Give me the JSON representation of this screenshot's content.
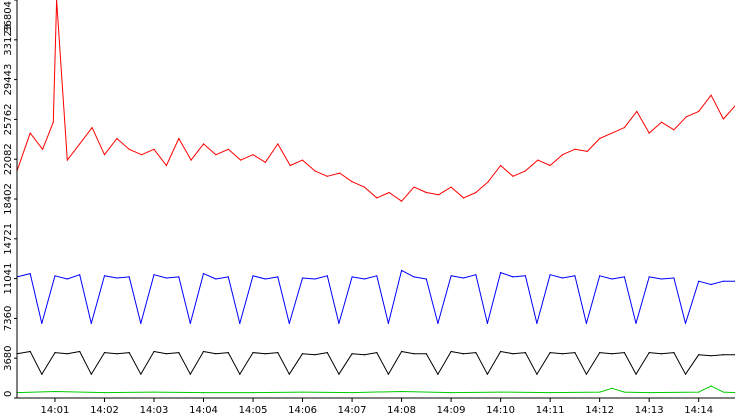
{
  "chart_data": {
    "type": "line",
    "title": "",
    "xlabel": "",
    "ylabel": "",
    "grid": false,
    "legend": "none",
    "background": "#ffffff",
    "axis_color": "#000000",
    "ylim": [
      0,
      36804
    ],
    "yticks": [
      {
        "value": 0,
        "label": "0"
      },
      {
        "value": 3680,
        "label": "3680"
      },
      {
        "value": 7360,
        "label": "7360"
      },
      {
        "value": 11041,
        "label": "11041"
      },
      {
        "value": 14721,
        "label": "14721"
      },
      {
        "value": 18402,
        "label": "18402"
      },
      {
        "value": 22082,
        "label": "22082"
      },
      {
        "value": 25762,
        "label": "25762"
      },
      {
        "value": 29443,
        "label": "29443"
      },
      {
        "value": 33123,
        "label": "33123"
      },
      {
        "value": 36804,
        "label": "36804"
      }
    ],
    "xlim": [
      "14:00:14",
      "14:14:44"
    ],
    "xticks": [
      "14:01",
      "14:02",
      "14:03",
      "14:04",
      "14:05",
      "14:06",
      "14:07",
      "14:08",
      "14:09",
      "14:10",
      "14:11",
      "14:12",
      "14:13",
      "14:14"
    ],
    "series": [
      {
        "color": "#ff0000",
        "x": [
          "14:00:14",
          "14:00:30",
          "14:00:45",
          "14:00:58",
          "14:01:02",
          "14:01:15",
          "14:01:30",
          "14:01:45",
          "14:02:00",
          "14:02:15",
          "14:02:30",
          "14:02:45",
          "14:03:00",
          "14:03:15",
          "14:03:30",
          "14:03:45",
          "14:04:00",
          "14:04:15",
          "14:04:30",
          "14:04:45",
          "14:05:00",
          "14:05:15",
          "14:05:30",
          "14:05:45",
          "14:06:00",
          "14:06:15",
          "14:06:30",
          "14:06:45",
          "14:07:00",
          "14:07:15",
          "14:07:30",
          "14:07:45",
          "14:08:00",
          "14:08:15",
          "14:08:30",
          "14:08:45",
          "14:09:00",
          "14:09:15",
          "14:09:30",
          "14:09:45",
          "14:10:00",
          "14:10:15",
          "14:10:30",
          "14:10:45",
          "14:11:00",
          "14:11:15",
          "14:11:30",
          "14:11:45",
          "14:12:00",
          "14:12:15",
          "14:12:30",
          "14:12:45",
          "14:13:00",
          "14:13:15",
          "14:13:30",
          "14:13:45",
          "14:14:00",
          "14:14:15",
          "14:14:30",
          "14:14:44"
        ],
        "values": [
          21000,
          24500,
          23000,
          25500,
          36800,
          22000,
          23500,
          25000,
          22500,
          24000,
          23000,
          22500,
          23000,
          21500,
          24000,
          22000,
          23500,
          22500,
          23000,
          22000,
          22500,
          21800,
          23500,
          21500,
          22000,
          21000,
          20500,
          20800,
          20000,
          19500,
          18500,
          19000,
          18200,
          19500,
          19000,
          18800,
          19500,
          18500,
          19000,
          20000,
          21500,
          20500,
          21000,
          22000,
          21500,
          22500,
          23000,
          22800,
          24000,
          24500,
          25000,
          26500,
          24500,
          25500,
          24800,
          26000,
          26500,
          28000,
          25800,
          27000
        ]
      },
      {
        "color": "#0000ff",
        "x": [
          "14:00:14",
          "14:00:30",
          "14:00:44",
          "14:01:00",
          "14:01:15",
          "14:01:30",
          "14:01:44",
          "14:02:00",
          "14:02:15",
          "14:02:30",
          "14:02:44",
          "14:03:00",
          "14:03:15",
          "14:03:30",
          "14:03:44",
          "14:04:00",
          "14:04:15",
          "14:04:30",
          "14:04:44",
          "14:05:00",
          "14:05:15",
          "14:05:30",
          "14:05:44",
          "14:06:00",
          "14:06:15",
          "14:06:30",
          "14:06:44",
          "14:07:00",
          "14:07:15",
          "14:07:30",
          "14:07:44",
          "14:08:00",
          "14:08:15",
          "14:08:30",
          "14:08:44",
          "14:09:00",
          "14:09:15",
          "14:09:30",
          "14:09:44",
          "14:10:00",
          "14:10:15",
          "14:10:30",
          "14:10:44",
          "14:11:00",
          "14:11:15",
          "14:11:30",
          "14:11:44",
          "14:12:00",
          "14:12:15",
          "14:12:30",
          "14:12:44",
          "14:13:00",
          "14:13:15",
          "14:13:30",
          "14:13:44",
          "14:14:00",
          "14:14:15",
          "14:14:30",
          "14:14:44"
        ],
        "values": [
          11200,
          11500,
          6900,
          11300,
          11000,
          11400,
          6900,
          11300,
          11100,
          11200,
          6900,
          11400,
          11100,
          11200,
          6900,
          11500,
          11000,
          11200,
          6900,
          11300,
          11000,
          11200,
          6900,
          11100,
          11000,
          11300,
          6900,
          11200,
          11000,
          11300,
          6900,
          11800,
          11200,
          11000,
          6900,
          11300,
          11100,
          11400,
          6900,
          11600,
          11200,
          11300,
          6900,
          11400,
          11100,
          11300,
          6900,
          11300,
          11000,
          11200,
          6900,
          11200,
          11000,
          11100,
          6900,
          10800,
          10500,
          10800,
          10800
        ]
      },
      {
        "color": "#000000",
        "x": [
          "14:00:14",
          "14:00:30",
          "14:00:44",
          "14:01:00",
          "14:01:15",
          "14:01:30",
          "14:01:44",
          "14:02:00",
          "14:02:15",
          "14:02:30",
          "14:02:44",
          "14:03:00",
          "14:03:15",
          "14:03:30",
          "14:03:44",
          "14:04:00",
          "14:04:15",
          "14:04:30",
          "14:04:44",
          "14:05:00",
          "14:05:15",
          "14:05:30",
          "14:05:44",
          "14:06:00",
          "14:06:15",
          "14:06:30",
          "14:06:44",
          "14:07:00",
          "14:07:15",
          "14:07:30",
          "14:07:44",
          "14:08:00",
          "14:08:15",
          "14:08:30",
          "14:08:44",
          "14:09:00",
          "14:09:15",
          "14:09:30",
          "14:09:44",
          "14:10:00",
          "14:10:15",
          "14:10:30",
          "14:10:44",
          "14:11:00",
          "14:11:15",
          "14:11:30",
          "14:11:44",
          "14:12:00",
          "14:12:15",
          "14:12:30",
          "14:12:44",
          "14:13:00",
          "14:13:15",
          "14:13:30",
          "14:13:44",
          "14:14:00",
          "14:14:15",
          "14:14:30",
          "14:14:44"
        ],
        "values": [
          4100,
          4300,
          2200,
          4200,
          4100,
          4300,
          2200,
          4200,
          4100,
          4200,
          2200,
          4300,
          4100,
          4200,
          2200,
          4300,
          4100,
          4200,
          2200,
          4200,
          4100,
          4200,
          2200,
          4100,
          4000,
          4200,
          2200,
          4100,
          4000,
          4200,
          2200,
          4300,
          4100,
          4100,
          2200,
          4300,
          4100,
          4200,
          2200,
          4300,
          4100,
          4200,
          2200,
          4200,
          4100,
          4200,
          2200,
          4200,
          4100,
          4200,
          2200,
          4200,
          4100,
          4200,
          2200,
          4000,
          3900,
          4000,
          4000
        ]
      },
      {
        "color": "#00cc00",
        "x": [
          "14:00:14",
          "14:01:00",
          "14:02:00",
          "14:03:00",
          "14:04:00",
          "14:05:00",
          "14:06:00",
          "14:07:00",
          "14:08:00",
          "14:09:00",
          "14:10:00",
          "14:11:00",
          "14:12:00",
          "14:12:15",
          "14:12:30",
          "14:13:00",
          "14:14:00",
          "14:14:15",
          "14:14:30",
          "14:14:44"
        ],
        "values": [
          500,
          600,
          500,
          550,
          500,
          500,
          550,
          500,
          600,
          500,
          550,
          500,
          550,
          900,
          550,
          500,
          550,
          1100,
          550,
          500
        ]
      }
    ]
  }
}
